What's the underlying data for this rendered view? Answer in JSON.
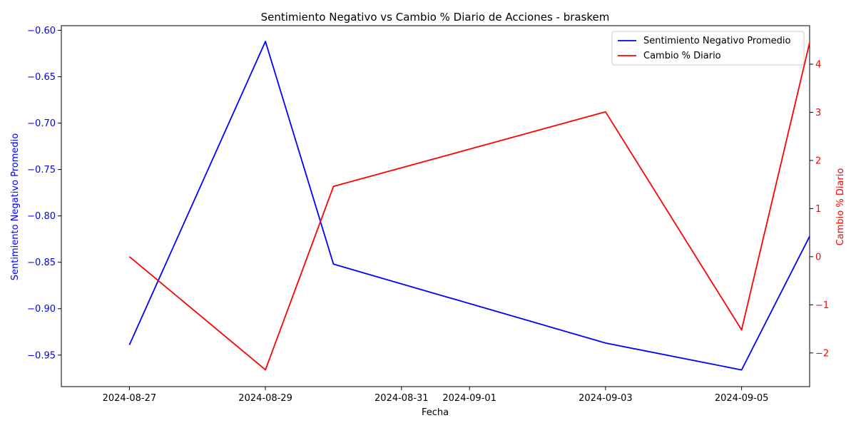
{
  "chart_data": {
    "type": "line",
    "title": "Sentimiento Negativo vs Cambio % Diario de Acciones - braskem",
    "xlabel": "Fecha",
    "ylabel_left": "Sentimiento Negativo Promedio",
    "ylabel_right": "Cambio % Diario",
    "x_ticks": [
      "2024-08-27",
      "2024-08-29",
      "2024-08-31",
      "2024-09-01",
      "2024-09-03",
      "2024-09-05"
    ],
    "x_range": [
      "2024-08-26",
      "2024-09-06"
    ],
    "left_ylim": [
      -0.984,
      -0.595
    ],
    "left_ticks": [
      -0.95,
      -0.9,
      -0.85,
      -0.8,
      -0.75,
      -0.7,
      -0.65,
      -0.6
    ],
    "right_ylim": [
      -2.7,
      4.8
    ],
    "right_ticks": [
      -2,
      -1,
      0,
      1,
      2,
      3,
      4
    ],
    "grid": false,
    "legend_position": "top-right",
    "series": [
      {
        "name": "Sentimiento Negativo Promedio",
        "axis": "left",
        "color": "#0000ff",
        "x": [
          "2024-08-27",
          "2024-08-29",
          "2024-08-30",
          "2024-09-03",
          "2024-09-05",
          "2024-09-06"
        ],
        "y": [
          -0.939,
          -0.612,
          -0.852,
          -0.937,
          -0.966,
          -0.822
        ]
      },
      {
        "name": "Cambio % Diario",
        "axis": "right",
        "color": "#ff0000",
        "x": [
          "2024-08-27",
          "2024-08-29",
          "2024-08-30",
          "2024-09-03",
          "2024-09-05",
          "2024-09-06"
        ],
        "y": [
          0.0,
          -2.35,
          1.46,
          3.01,
          -1.52,
          4.45
        ]
      }
    ]
  }
}
